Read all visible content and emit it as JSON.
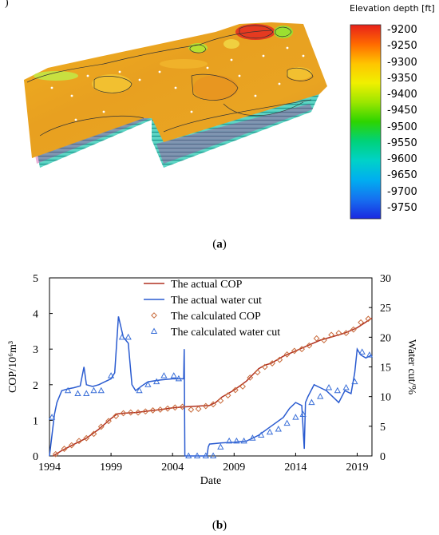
{
  "figure": {
    "panel_a": {
      "corner_mark": ")",
      "label_open": "(",
      "label_letter": "a",
      "label_close": ")",
      "colorbar": {
        "title": "Elevation depth [ft]",
        "ticks": [
          "-9200",
          "-9250",
          "-9300",
          "-9350",
          "-9400",
          "-9450",
          "-9500",
          "-9550",
          "-9600",
          "-9650",
          "-9700",
          "-9750"
        ],
        "colors": [
          "#e8201a",
          "#ff6a00",
          "#ffc400",
          "#f0f000",
          "#9be600",
          "#2dd400",
          "#00d27a",
          "#00d2c8",
          "#00aef0",
          "#1670f0",
          "#1a28e0"
        ]
      }
    },
    "panel_b": {
      "label_open": "(",
      "label_letter": "b",
      "label_close": ")"
    }
  },
  "chart_data": {
    "type": "line",
    "xlabel": "Date",
    "ylabel_left": "COP/10⁶m³",
    "ylabel_right": "Water cut/%",
    "x_ticks": [
      1994,
      1999,
      2004,
      2009,
      2014,
      2019
    ],
    "xlim": [
      1994,
      2020.2
    ],
    "ylim_left": [
      0,
      5
    ],
    "ylim_right": [
      0,
      30
    ],
    "y_ticks_left": [
      0,
      1,
      2,
      3,
      4,
      5
    ],
    "y_ticks_right": [
      0,
      5,
      10,
      15,
      20,
      25,
      30
    ],
    "legend_position": "top-center",
    "series": [
      {
        "name": "The actual COP",
        "axis": "left",
        "style": "line",
        "color": "#b03020",
        "x": [
          1994.3,
          1995,
          1996,
          1997,
          1998,
          1999,
          1999.5,
          2000,
          2001,
          2002,
          2003,
          2004,
          2005,
          2006,
          2007,
          2007.5,
          2008,
          2009,
          2010,
          2011,
          2011.5,
          2012,
          2013,
          2014,
          2015,
          2016,
          2017,
          2018,
          2019,
          2020.2
        ],
        "y": [
          0,
          0.15,
          0.33,
          0.5,
          0.75,
          1.05,
          1.18,
          1.2,
          1.22,
          1.26,
          1.3,
          1.35,
          1.38,
          1.4,
          1.42,
          1.5,
          1.65,
          1.85,
          2.1,
          2.45,
          2.55,
          2.6,
          2.8,
          2.95,
          3.1,
          3.25,
          3.35,
          3.45,
          3.6,
          3.87
        ]
      },
      {
        "name": "The actual water cut",
        "axis": "right",
        "style": "line",
        "color": "#2a5bd0",
        "x": [
          1994,
          1994.4,
          1994.6,
          1995,
          1995.5,
          1996,
          1996.5,
          1996.8,
          1997,
          1997.5,
          1998,
          1998.5,
          1999,
          1999.3,
          1999.6,
          2000,
          2000.4,
          2000.7,
          2001,
          2001.5,
          2002,
          2003,
          2004,
          2004.9,
          2004.95,
          2005.0,
          2005.05,
          2005.2,
          2006.8,
          2006.9,
          2007,
          2008,
          2009,
          2010,
          2011,
          2012,
          2013,
          2013.5,
          2014,
          2014.5,
          2014.7,
          2014.8,
          2015,
          2015.5,
          2016,
          2016.5,
          2017,
          2017.5,
          2018,
          2018.5,
          2018.8,
          2019,
          2019.3,
          2019.7,
          2020.2
        ],
        "y": [
          0,
          7,
          9,
          11,
          11.3,
          11.5,
          11.8,
          15,
          12,
          11.7,
          12,
          12.5,
          13,
          14,
          23.5,
          20,
          19,
          12,
          11,
          11.8,
          12.5,
          12.8,
          13,
          13,
          18,
          0,
          0,
          0,
          0,
          1.5,
          2,
          2.2,
          2.3,
          2.5,
          3.5,
          5,
          6.5,
          8,
          9,
          8.5,
          1.2,
          9,
          10,
          12,
          11.5,
          11,
          10,
          9,
          11,
          10.5,
          14,
          18,
          17,
          16.5,
          17
        ]
      },
      {
        "name": "The calculated  COP",
        "axis": "left",
        "style": "diamond",
        "color": "#c86a3a",
        "x": [
          1994.5,
          1995.2,
          1995.8,
          1996.4,
          1997,
          1997.6,
          1998.2,
          1998.8,
          1999.4,
          2000,
          2000.6,
          2001.2,
          2001.8,
          2002.4,
          2003,
          2003.6,
          2004.2,
          2004.8,
          2005.5,
          2006.1,
          2006.7,
          2007.3,
          2007.9,
          2008.5,
          2009.1,
          2009.7,
          2010.3,
          2010.9,
          2011.5,
          2012.1,
          2012.7,
          2013.3,
          2013.9,
          2014.5,
          2015.1,
          2015.7,
          2016.3,
          2016.9,
          2017.5,
          2018.1,
          2018.7,
          2019.3,
          2019.9
        ],
        "y": [
          0.05,
          0.2,
          0.3,
          0.42,
          0.5,
          0.62,
          0.82,
          0.98,
          1.12,
          1.2,
          1.22,
          1.22,
          1.25,
          1.28,
          1.3,
          1.33,
          1.36,
          1.38,
          1.3,
          1.32,
          1.4,
          1.45,
          1.55,
          1.7,
          1.85,
          1.95,
          2.2,
          2.35,
          2.5,
          2.6,
          2.7,
          2.85,
          2.95,
          3.0,
          3.1,
          3.3,
          3.25,
          3.4,
          3.45,
          3.45,
          3.55,
          3.75,
          3.85
        ]
      },
      {
        "name": "The calculated water cut",
        "axis": "right",
        "style": "triangle",
        "color": "#3a6fd8",
        "x": [
          1994.2,
          1995.5,
          1996.3,
          1997,
          1997.6,
          1998.2,
          1999.0,
          1999.9,
          2000.4,
          2001.3,
          2002,
          2002.7,
          2003.3,
          2004.1,
          2004.5,
          2005.3,
          2006,
          2006.7,
          2007.3,
          2007.9,
          2008.6,
          2009.2,
          2009.8,
          2010.5,
          2011.2,
          2011.9,
          2012.6,
          2013.3,
          2014.0,
          2014.6,
          2015.3,
          2016.0,
          2016.7,
          2017.4,
          2018.1,
          2018.8,
          2019.4,
          2020.0
        ],
        "y": [
          6.5,
          11,
          10.5,
          10.5,
          11,
          11,
          13.5,
          20,
          20,
          11,
          12,
          12.5,
          13.5,
          13.5,
          13,
          0,
          0,
          0,
          0,
          1.5,
          2.5,
          2.5,
          2.5,
          3,
          3.5,
          4,
          4.5,
          5.5,
          6.5,
          7,
          9,
          10,
          11.5,
          11,
          11.5,
          12.5,
          17.5,
          17
        ]
      }
    ]
  }
}
